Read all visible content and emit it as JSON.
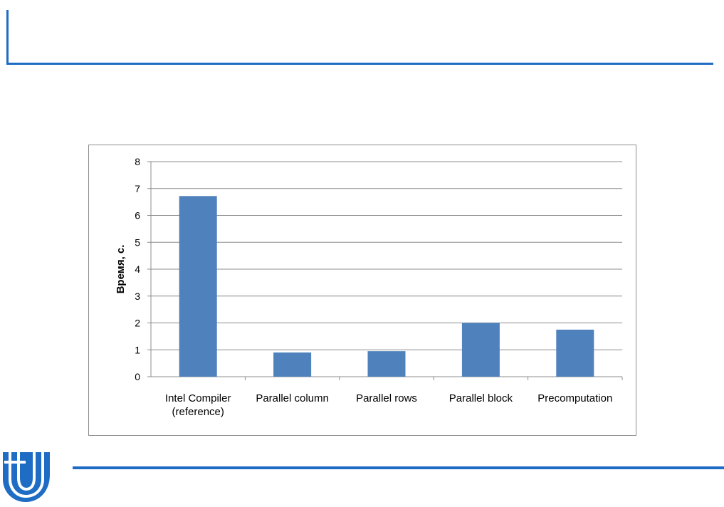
{
  "slide": {
    "accent_color": "#1f6cc4",
    "logo_icon": "university-logo-icon"
  },
  "chart_data": {
    "type": "bar",
    "title": "",
    "xlabel": "",
    "ylabel": "Время, с.",
    "categories": [
      [
        "Intel Compiler",
        "(reference)"
      ],
      [
        "Parallel column"
      ],
      [
        "Parallel rows"
      ],
      [
        "Parallel block"
      ],
      [
        "Precomputation"
      ]
    ],
    "values": [
      6.72,
      0.9,
      0.95,
      2.0,
      1.75
    ],
    "ylim": [
      0,
      8
    ],
    "yticks": [
      "0",
      "1",
      "2",
      "3",
      "4",
      "5",
      "6",
      "7",
      "8"
    ],
    "grid": true,
    "legend": "none",
    "bar_color": "#4f81bd"
  }
}
